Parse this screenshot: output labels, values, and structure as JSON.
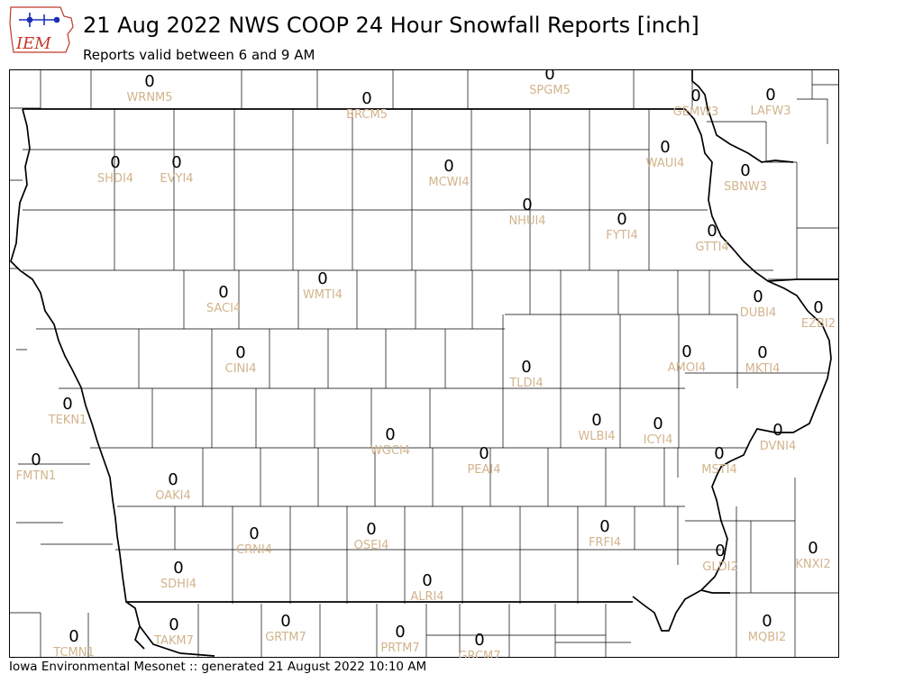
{
  "header": {
    "logo_text": "IEM",
    "title": "21 Aug 2022 NWS COOP 24 Hour Snowfall Reports [inch]",
    "subtitle": "Reports valid between 6 and 9 AM"
  },
  "footer": {
    "text": "Iowa Environmental Mesonet :: generated 21 August 2022 10:10 AM"
  },
  "colors": {
    "station_label": "#d2b48c",
    "value": "#000000",
    "border": "#000000",
    "logo": "#c0392b"
  },
  "stations": [
    {
      "id": "WRNM5",
      "value": "0"
    },
    {
      "id": "BRCM5",
      "value": "0"
    },
    {
      "id": "SPGM5",
      "value": "0"
    },
    {
      "id": "GEMW3",
      "value": "0"
    },
    {
      "id": "LAFW3",
      "value": "0"
    },
    {
      "id": "SHDI4",
      "value": "0"
    },
    {
      "id": "EVYI4",
      "value": "0"
    },
    {
      "id": "MCWI4",
      "value": "0"
    },
    {
      "id": "WAUI4",
      "value": "0"
    },
    {
      "id": "SBNW3",
      "value": "0"
    },
    {
      "id": "NHUI4",
      "value": "0"
    },
    {
      "id": "FYTI4",
      "value": "0"
    },
    {
      "id": "GTTI4",
      "value": "0"
    },
    {
      "id": "WMTI4",
      "value": "0"
    },
    {
      "id": "SACI4",
      "value": "0"
    },
    {
      "id": "DUBI4",
      "value": "0"
    },
    {
      "id": "EZBI2",
      "value": "0"
    },
    {
      "id": "CINI4",
      "value": "0"
    },
    {
      "id": "AMOI4",
      "value": "0"
    },
    {
      "id": "MKTI4",
      "value": "0"
    },
    {
      "id": "TLDI4",
      "value": "0"
    },
    {
      "id": "TEKN1",
      "value": "0"
    },
    {
      "id": "WLBI4",
      "value": "0"
    },
    {
      "id": "ICYI4",
      "value": "0"
    },
    {
      "id": "DVNI4",
      "value": "0"
    },
    {
      "id": "WGCI4",
      "value": "0"
    },
    {
      "id": "PEAI4",
      "value": "0"
    },
    {
      "id": "MSTI4",
      "value": "0"
    },
    {
      "id": "FMTN1",
      "value": "0"
    },
    {
      "id": "OAKI4",
      "value": "0"
    },
    {
      "id": "CRNI4",
      "value": "0"
    },
    {
      "id": "OSEI4",
      "value": "0"
    },
    {
      "id": "FRFI4",
      "value": "0"
    },
    {
      "id": "KNXI2",
      "value": "0"
    },
    {
      "id": "SDHI4",
      "value": "0"
    },
    {
      "id": "ALRI4",
      "value": "0"
    },
    {
      "id": "GLDI2",
      "value": "0"
    },
    {
      "id": "TAKM7",
      "value": "0"
    },
    {
      "id": "GRTM7",
      "value": "0"
    },
    {
      "id": "PRTM7",
      "value": "0"
    },
    {
      "id": "MQBI2",
      "value": "0"
    },
    {
      "id": "TCMN1",
      "value": "0"
    },
    {
      "id": "GRCM7",
      "value": "0"
    }
  ]
}
